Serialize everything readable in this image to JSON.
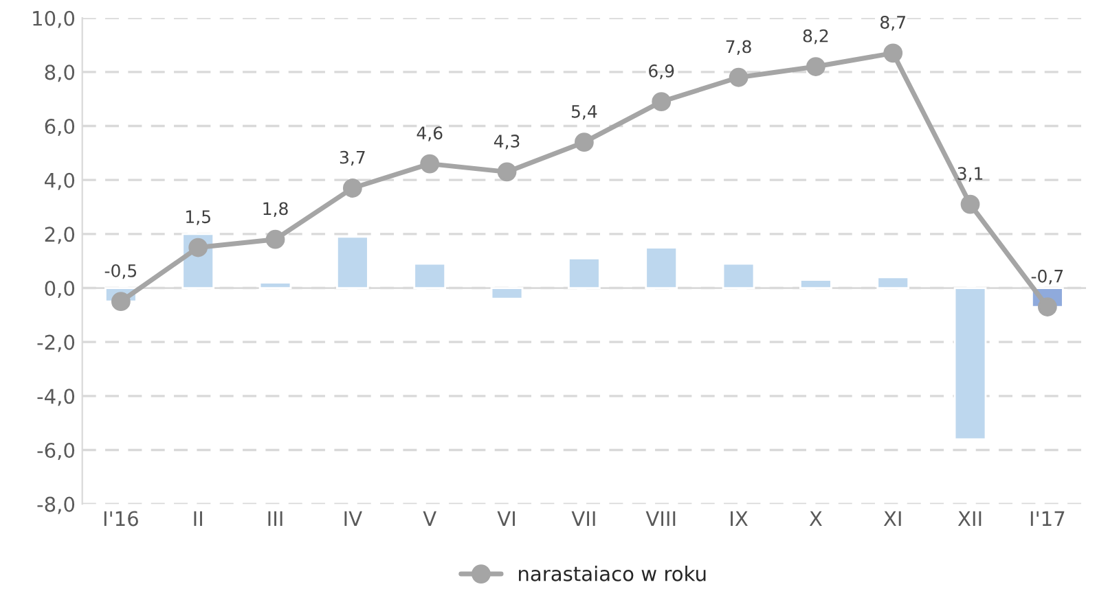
{
  "chart_data": {
    "type": "bar",
    "categories": [
      "I'16",
      "II",
      "III",
      "IV",
      "V",
      "VI",
      "VII",
      "VIII",
      "IX",
      "X",
      "XI",
      "XII",
      "I'17"
    ],
    "series": [
      {
        "colors": [
          "#bdd7ee",
          "#bdd7ee",
          "#bdd7ee",
          "#bdd7ee",
          "#bdd7ee",
          "#bdd7ee",
          "#bdd7ee",
          "#bdd7ee",
          "#bdd7ee",
          "#bdd7ee",
          "#bdd7ee",
          "#bdd7ee",
          "#8faadc"
        ],
        "values": [
          -0.5,
          2.0,
          0.2,
          1.9,
          0.9,
          -0.4,
          1.1,
          1.5,
          0.9,
          0.3,
          0.4,
          -5.6,
          -0.7
        ]
      },
      {
        "type": "line",
        "name": "narastaiaco w roku",
        "color": "#a5a5a5",
        "marker": "circle",
        "values": [
          -0.5,
          1.5,
          1.8,
          3.7,
          4.6,
          4.3,
          5.4,
          6.9,
          7.8,
          8.2,
          8.7,
          3.1,
          -0.7
        ],
        "value_labels": [
          "-0,5",
          "1,5",
          "1,8",
          "3,7",
          "4,6",
          "4,3",
          "5,4",
          "6,9",
          "7,8",
          "8,2",
          "8,7",
          "3,1",
          "-0,7"
        ]
      }
    ],
    "ylim": [
      -8,
      10
    ],
    "yticks": [
      {
        "value": -8,
        "label": "-8,0"
      },
      {
        "value": -6,
        "label": "-6,0"
      },
      {
        "value": -4,
        "label": "-4,0"
      },
      {
        "value": -2,
        "label": "-2,0"
      },
      {
        "value": 0,
        "label": "0,0"
      },
      {
        "value": 2,
        "label": "2,0"
      },
      {
        "value": 4,
        "label": "4,0"
      },
      {
        "value": 6,
        "label": "6,0"
      },
      {
        "value": 8,
        "label": "8,0"
      },
      {
        "value": 10,
        "label": "10,0"
      }
    ],
    "grid": "y",
    "legend": "bottom"
  }
}
